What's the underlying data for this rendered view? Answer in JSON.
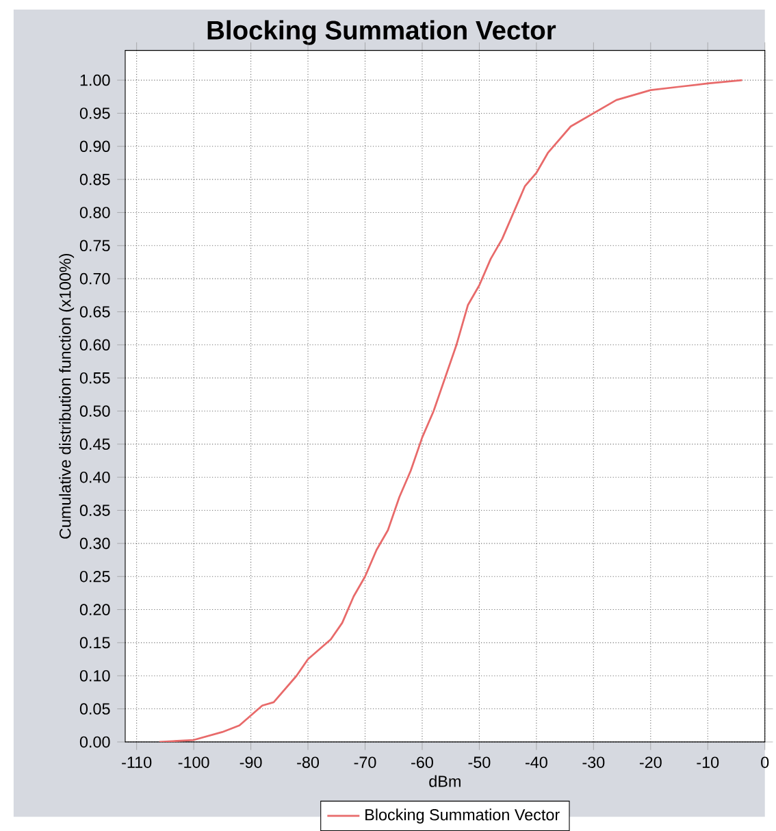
{
  "chart_data": {
    "type": "line",
    "title": "Blocking Summation Vector",
    "xlabel": "dBm",
    "ylabel": "Cumulative distribution function (x100%)",
    "x": [
      -106,
      -100,
      -95,
      -92,
      -90,
      -88,
      -86,
      -84,
      -82,
      -80,
      -78,
      -76,
      -74,
      -72,
      -70,
      -68,
      -66,
      -64,
      -62,
      -60,
      -58,
      -56,
      -54,
      -52,
      -50,
      -48,
      -46,
      -44,
      -42,
      -40,
      -38,
      -36,
      -34,
      -30,
      -26,
      -22,
      -20,
      -15,
      -10,
      -4
    ],
    "series": [
      {
        "name": "Blocking Summation Vector",
        "color": "#e86a6a",
        "values": [
          0,
          0.003,
          0.015,
          0.025,
          0.04,
          0.055,
          0.06,
          0.08,
          0.1,
          0.125,
          0.14,
          0.155,
          0.18,
          0.22,
          0.25,
          0.29,
          0.32,
          0.37,
          0.41,
          0.46,
          0.5,
          0.55,
          0.6,
          0.66,
          0.69,
          0.73,
          0.76,
          0.8,
          0.84,
          0.86,
          0.89,
          0.91,
          0.93,
          0.95,
          0.97,
          0.98,
          0.985,
          0.99,
          0.995,
          1.0
        ]
      }
    ],
    "xlim": [
      -112,
      0
    ],
    "ylim": [
      0,
      1.045
    ],
    "xticks": [
      -110,
      -100,
      -90,
      -80,
      -70,
      -60,
      -50,
      -40,
      -30,
      -20,
      -10,
      0
    ],
    "yticks": [
      {
        "value": 0,
        "label": "0.00"
      },
      {
        "value": 0.05,
        "label": "0.05"
      },
      {
        "value": 0.1,
        "label": "0.10"
      },
      {
        "value": 0.15,
        "label": "0.15"
      },
      {
        "value": 0.2,
        "label": "0.20"
      },
      {
        "value": 0.25,
        "label": "0.25"
      },
      {
        "value": 0.3,
        "label": "0.30"
      },
      {
        "value": 0.35,
        "label": "0.35"
      },
      {
        "value": 0.4,
        "label": "0.40"
      },
      {
        "value": 0.45,
        "label": "0.45"
      },
      {
        "value": 0.5,
        "label": "0.50"
      },
      {
        "value": 0.55,
        "label": "0.55"
      },
      {
        "value": 0.6,
        "label": "0.60"
      },
      {
        "value": 0.65,
        "label": "0.65"
      },
      {
        "value": 0.7,
        "label": "0.70"
      },
      {
        "value": 0.75,
        "label": "0.75"
      },
      {
        "value": 0.8,
        "label": "0.80"
      },
      {
        "value": 0.85,
        "label": "0.85"
      },
      {
        "value": 0.9,
        "label": "0.90"
      },
      {
        "value": 0.95,
        "label": "0.95"
      },
      {
        "value": 1,
        "label": "1.00"
      }
    ],
    "grid": true,
    "legend": "bottom",
    "marker": "none",
    "line_style": "solid"
  }
}
